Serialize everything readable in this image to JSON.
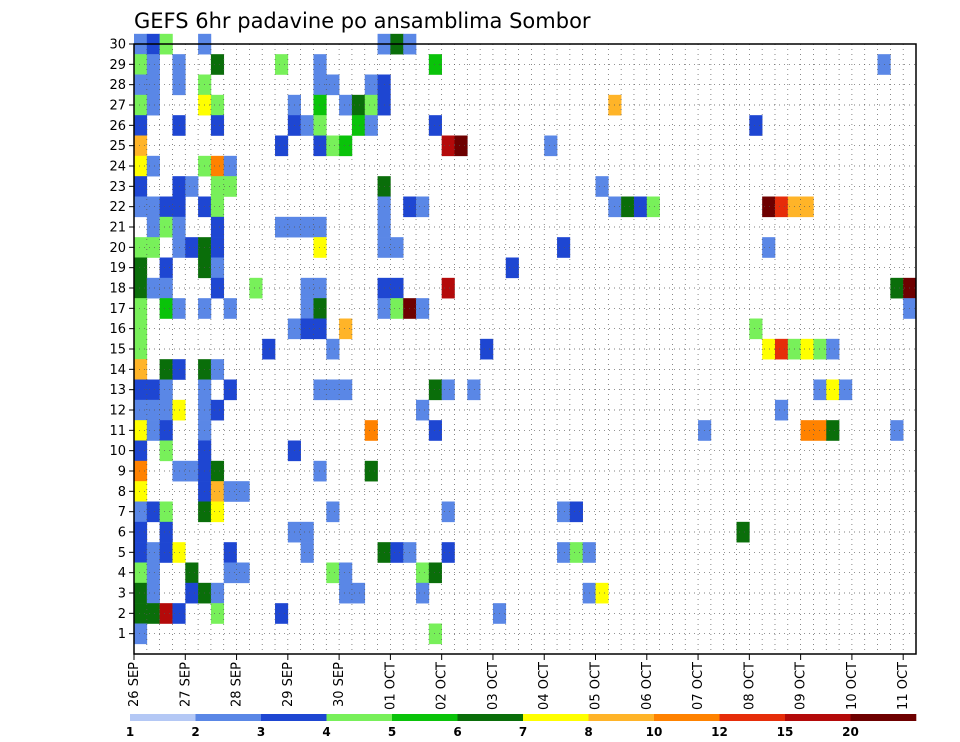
{
  "chart_data": {
    "type": "heatmap",
    "title": "GEFS 6hr padavine po ansamblima Sombor",
    "xlabel": "",
    "ylabel": "",
    "y_tick_labels": [
      "1",
      "2",
      "3",
      "4",
      "5",
      "6",
      "7",
      "8",
      "9",
      "10",
      "11",
      "12",
      "13",
      "14",
      "15",
      "16",
      "17",
      "18",
      "19",
      "20",
      "21",
      "22",
      "23",
      "24",
      "25",
      "26",
      "27",
      "28",
      "29",
      "30"
    ],
    "y_range": [
      0,
      30
    ],
    "x_tick_labels": [
      "26 SEP",
      "27 SEP",
      "28 SEP",
      "29 SEP",
      "30 SEP",
      "01 OCT",
      "02 OCT",
      "03 OCT",
      "04 OCT",
      "05 OCT",
      "06 OCT",
      "07 OCT",
      "08 OCT",
      "09 OCT",
      "10 OCT",
      "11 OCT"
    ],
    "x_range_steps": [
      0,
      61
    ],
    "steps_per_day": 4,
    "grid": true,
    "colorbar": {
      "levels": [
        "1",
        "2",
        "3",
        "4",
        "5",
        "6",
        "7",
        "8",
        "10",
        "12",
        "15",
        "20"
      ],
      "colors": [
        "#b4c8f5",
        "#5a87e6",
        "#1e46d2",
        "#78f05a",
        "#0ac30a",
        "#0a6e0a",
        "#ffff00",
        "#ffb428",
        "#ff8200",
        "#e62d0a",
        "#b40a0a",
        "#6e0000"
      ]
    },
    "cells": [
      [
        0,
        30,
        1
      ],
      [
        1,
        30,
        2
      ],
      [
        2,
        30,
        3
      ],
      [
        5,
        30,
        1
      ],
      [
        19,
        30,
        1
      ],
      [
        20,
        30,
        5
      ],
      [
        21,
        30,
        1
      ],
      [
        0,
        29,
        3
      ],
      [
        1,
        29,
        1
      ],
      [
        3,
        29,
        1
      ],
      [
        6,
        29,
        5
      ],
      [
        11,
        29,
        3
      ],
      [
        14,
        29,
        1
      ],
      [
        23,
        29,
        4
      ],
      [
        58,
        29,
        1
      ],
      [
        0,
        28,
        1
      ],
      [
        1,
        28,
        1
      ],
      [
        3,
        28,
        1
      ],
      [
        5,
        28,
        3
      ],
      [
        14,
        28,
        1
      ],
      [
        15,
        28,
        1
      ],
      [
        18,
        28,
        1
      ],
      [
        19,
        28,
        2
      ],
      [
        0,
        27,
        3
      ],
      [
        1,
        27,
        1
      ],
      [
        5,
        27,
        6
      ],
      [
        6,
        27,
        3
      ],
      [
        12,
        27,
        1
      ],
      [
        14,
        27,
        4
      ],
      [
        16,
        27,
        1
      ],
      [
        17,
        27,
        5
      ],
      [
        18,
        27,
        3
      ],
      [
        19,
        27,
        2
      ],
      [
        37,
        27,
        7
      ],
      [
        0,
        26,
        2
      ],
      [
        3,
        26,
        2
      ],
      [
        6,
        26,
        2
      ],
      [
        12,
        26,
        2
      ],
      [
        13,
        26,
        1
      ],
      [
        14,
        26,
        3
      ],
      [
        17,
        26,
        4
      ],
      [
        18,
        26,
        1
      ],
      [
        23,
        26,
        2
      ],
      [
        48,
        26,
        2
      ],
      [
        0,
        25,
        7
      ],
      [
        11,
        25,
        2
      ],
      [
        14,
        25,
        2
      ],
      [
        15,
        25,
        3
      ],
      [
        16,
        25,
        4
      ],
      [
        24,
        25,
        10
      ],
      [
        25,
        25,
        11
      ],
      [
        32,
        25,
        1
      ],
      [
        0,
        24,
        6
      ],
      [
        1,
        24,
        1
      ],
      [
        5,
        24,
        3
      ],
      [
        6,
        24,
        8
      ],
      [
        7,
        24,
        1
      ],
      [
        0,
        23,
        2
      ],
      [
        3,
        23,
        2
      ],
      [
        4,
        23,
        1
      ],
      [
        6,
        23,
        3
      ],
      [
        7,
        23,
        3
      ],
      [
        19,
        23,
        5
      ],
      [
        36,
        23,
        1
      ],
      [
        0,
        22,
        1
      ],
      [
        1,
        22,
        1
      ],
      [
        2,
        22,
        2
      ],
      [
        3,
        22,
        2
      ],
      [
        5,
        22,
        2
      ],
      [
        6,
        22,
        3
      ],
      [
        19,
        22,
        1
      ],
      [
        21,
        22,
        2
      ],
      [
        22,
        22,
        1
      ],
      [
        37,
        22,
        1
      ],
      [
        38,
        22,
        5
      ],
      [
        39,
        22,
        2
      ],
      [
        40,
        22,
        3
      ],
      [
        49,
        22,
        11
      ],
      [
        50,
        22,
        9
      ],
      [
        51,
        22,
        7
      ],
      [
        52,
        22,
        7
      ],
      [
        1,
        21,
        1
      ],
      [
        2,
        21,
        3
      ],
      [
        3,
        21,
        1
      ],
      [
        6,
        21,
        2
      ],
      [
        11,
        21,
        1
      ],
      [
        12,
        21,
        1
      ],
      [
        13,
        21,
        1
      ],
      [
        14,
        21,
        1
      ],
      [
        19,
        21,
        1
      ],
      [
        0,
        20,
        3
      ],
      [
        1,
        20,
        3
      ],
      [
        3,
        20,
        1
      ],
      [
        4,
        20,
        2
      ],
      [
        5,
        20,
        5
      ],
      [
        6,
        20,
        2
      ],
      [
        14,
        20,
        6
      ],
      [
        19,
        20,
        1
      ],
      [
        20,
        20,
        1
      ],
      [
        33,
        20,
        2
      ],
      [
        49,
        20,
        1
      ],
      [
        0,
        19,
        5
      ],
      [
        2,
        19,
        2
      ],
      [
        5,
        19,
        5
      ],
      [
        6,
        19,
        1
      ],
      [
        29,
        19,
        2
      ],
      [
        0,
        18,
        5
      ],
      [
        1,
        18,
        1
      ],
      [
        2,
        18,
        1
      ],
      [
        6,
        18,
        2
      ],
      [
        9,
        18,
        3
      ],
      [
        13,
        18,
        1
      ],
      [
        14,
        18,
        1
      ],
      [
        19,
        18,
        2
      ],
      [
        20,
        18,
        2
      ],
      [
        24,
        18,
        10
      ],
      [
        59,
        18,
        5
      ],
      [
        60,
        18,
        11
      ],
      [
        0,
        17,
        3
      ],
      [
        2,
        17,
        4
      ],
      [
        3,
        17,
        1
      ],
      [
        5,
        17,
        1
      ],
      [
        7,
        17,
        1
      ],
      [
        13,
        17,
        1
      ],
      [
        14,
        17,
        5
      ],
      [
        19,
        17,
        1
      ],
      [
        20,
        17,
        3
      ],
      [
        21,
        17,
        11
      ],
      [
        22,
        17,
        1
      ],
      [
        60,
        17,
        1
      ],
      [
        0,
        16,
        3
      ],
      [
        12,
        16,
        1
      ],
      [
        13,
        16,
        2
      ],
      [
        14,
        16,
        2
      ],
      [
        16,
        16,
        7
      ],
      [
        48,
        16,
        3
      ],
      [
        0,
        15,
        3
      ],
      [
        10,
        15,
        2
      ],
      [
        15,
        15,
        1
      ],
      [
        27,
        15,
        2
      ],
      [
        49,
        15,
        6
      ],
      [
        50,
        15,
        9
      ],
      [
        51,
        15,
        3
      ],
      [
        52,
        15,
        6
      ],
      [
        53,
        15,
        3
      ],
      [
        54,
        15,
        1
      ],
      [
        0,
        14,
        7
      ],
      [
        2,
        14,
        5
      ],
      [
        3,
        14,
        2
      ],
      [
        5,
        14,
        5
      ],
      [
        6,
        14,
        1
      ],
      [
        0,
        13,
        2
      ],
      [
        1,
        13,
        2
      ],
      [
        2,
        13,
        1
      ],
      [
        5,
        13,
        1
      ],
      [
        7,
        13,
        2
      ],
      [
        14,
        13,
        1
      ],
      [
        15,
        13,
        1
      ],
      [
        16,
        13,
        1
      ],
      [
        23,
        13,
        5
      ],
      [
        24,
        13,
        1
      ],
      [
        26,
        13,
        1
      ],
      [
        53,
        13,
        1
      ],
      [
        54,
        13,
        6
      ],
      [
        55,
        13,
        1
      ],
      [
        0,
        12,
        1
      ],
      [
        1,
        12,
        1
      ],
      [
        2,
        12,
        1
      ],
      [
        3,
        12,
        6
      ],
      [
        5,
        12,
        1
      ],
      [
        6,
        12,
        2
      ],
      [
        22,
        12,
        1
      ],
      [
        50,
        12,
        1
      ],
      [
        0,
        11,
        6
      ],
      [
        1,
        11,
        1
      ],
      [
        2,
        11,
        2
      ],
      [
        5,
        11,
        1
      ],
      [
        18,
        11,
        8
      ],
      [
        23,
        11,
        2
      ],
      [
        44,
        11,
        1
      ],
      [
        52,
        11,
        8
      ],
      [
        53,
        11,
        8
      ],
      [
        54,
        11,
        5
      ],
      [
        59,
        11,
        1
      ],
      [
        0,
        10,
        2
      ],
      [
        2,
        10,
        3
      ],
      [
        5,
        10,
        2
      ],
      [
        12,
        10,
        2
      ],
      [
        0,
        9,
        8
      ],
      [
        3,
        9,
        1
      ],
      [
        4,
        9,
        1
      ],
      [
        5,
        9,
        2
      ],
      [
        6,
        9,
        5
      ],
      [
        14,
        9,
        1
      ],
      [
        18,
        9,
        5
      ],
      [
        0,
        8,
        6
      ],
      [
        5,
        8,
        2
      ],
      [
        6,
        8,
        7
      ],
      [
        7,
        8,
        1
      ],
      [
        8,
        8,
        1
      ],
      [
        0,
        7,
        1
      ],
      [
        1,
        7,
        2
      ],
      [
        2,
        7,
        3
      ],
      [
        5,
        7,
        5
      ],
      [
        6,
        7,
        6
      ],
      [
        15,
        7,
        1
      ],
      [
        24,
        7,
        1
      ],
      [
        33,
        7,
        1
      ],
      [
        34,
        7,
        2
      ],
      [
        0,
        6,
        2
      ],
      [
        2,
        6,
        2
      ],
      [
        12,
        6,
        1
      ],
      [
        13,
        6,
        1
      ],
      [
        47,
        6,
        5
      ],
      [
        0,
        5,
        2
      ],
      [
        1,
        5,
        1
      ],
      [
        2,
        5,
        2
      ],
      [
        3,
        5,
        6
      ],
      [
        7,
        5,
        2
      ],
      [
        13,
        5,
        1
      ],
      [
        19,
        5,
        5
      ],
      [
        20,
        5,
        2
      ],
      [
        21,
        5,
        1
      ],
      [
        24,
        5,
        2
      ],
      [
        33,
        5,
        1
      ],
      [
        34,
        5,
        3
      ],
      [
        35,
        5,
        1
      ],
      [
        0,
        4,
        3
      ],
      [
        1,
        4,
        1
      ],
      [
        4,
        4,
        5
      ],
      [
        7,
        4,
        1
      ],
      [
        8,
        4,
        1
      ],
      [
        15,
        4,
        3
      ],
      [
        16,
        4,
        1
      ],
      [
        22,
        4,
        3
      ],
      [
        23,
        4,
        5
      ],
      [
        0,
        3,
        5
      ],
      [
        1,
        3,
        1
      ],
      [
        4,
        3,
        2
      ],
      [
        5,
        3,
        5
      ],
      [
        6,
        3,
        1
      ],
      [
        16,
        3,
        1
      ],
      [
        17,
        3,
        1
      ],
      [
        22,
        3,
        1
      ],
      [
        35,
        3,
        1
      ],
      [
        36,
        3,
        6
      ],
      [
        0,
        2,
        5
      ],
      [
        1,
        2,
        5
      ],
      [
        2,
        2,
        10
      ],
      [
        3,
        2,
        2
      ],
      [
        6,
        2,
        3
      ],
      [
        11,
        2,
        2
      ],
      [
        28,
        2,
        1
      ],
      [
        0,
        1,
        1
      ],
      [
        23,
        1,
        3
      ]
    ]
  }
}
